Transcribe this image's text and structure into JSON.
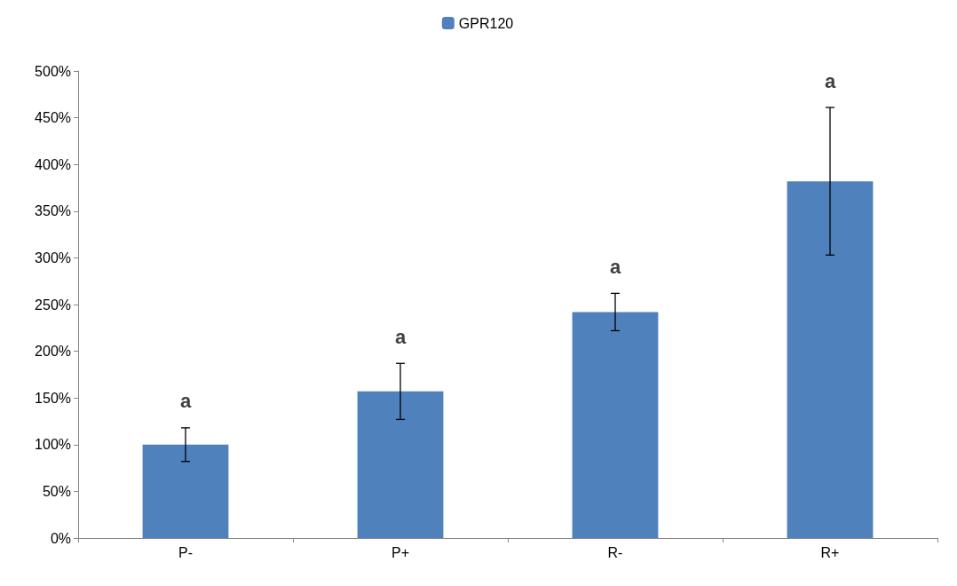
{
  "chart_data": {
    "type": "bar",
    "categories": [
      "P-",
      "P+",
      "R-",
      "R+"
    ],
    "series": [
      {
        "name": "GPR120",
        "color": "#4f81bd",
        "values": [
          100,
          157,
          242,
          382
        ],
        "errors": [
          18,
          30,
          20,
          79
        ]
      }
    ],
    "ylim": [
      0,
      500
    ],
    "yticks": [
      {
        "value": 0,
        "label": "0%"
      },
      {
        "value": 50,
        "label": "50%"
      },
      {
        "value": 100,
        "label": "100%"
      },
      {
        "value": 150,
        "label": "150%"
      },
      {
        "value": 200,
        "label": "200%"
      },
      {
        "value": 250,
        "label": "250%"
      },
      {
        "value": 300,
        "label": "300%"
      },
      {
        "value": 350,
        "label": "350%"
      },
      {
        "value": 400,
        "label": "400%"
      },
      {
        "value": 450,
        "label": "450%"
      },
      {
        "value": 500,
        "label": "500%"
      }
    ],
    "annotations": [
      "a",
      "a",
      "a",
      "a"
    ],
    "legend": "top",
    "grid": false
  }
}
